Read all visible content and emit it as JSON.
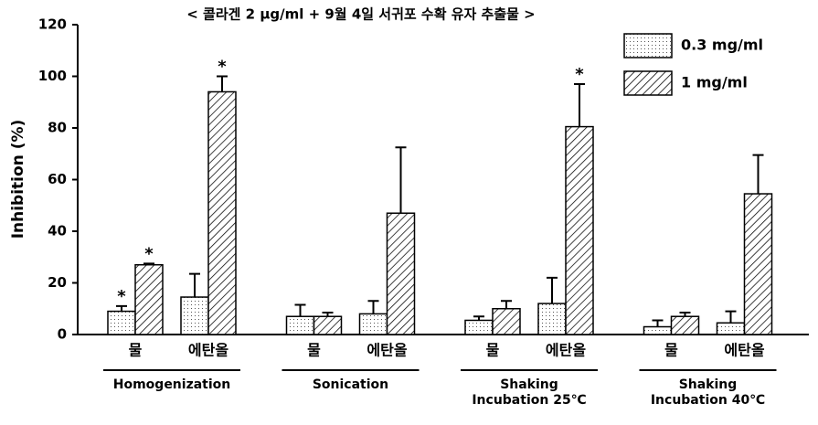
{
  "chart_data": {
    "type": "bar",
    "title": "< 콜라겐 2 μg/ml + 9월 4일 서귀포 수확 유자 추출물 >",
    "y_label": "Inhibition (%)",
    "categories": [
      "물",
      "에탄올",
      "물",
      "에탄올",
      "물",
      "에탄올",
      "물",
      "에탄올"
    ],
    "groups": [
      [
        "Homogenization"
      ],
      [
        "Sonication"
      ],
      [
        "Shaking",
        "Incubation  25℃"
      ],
      [
        "Shaking",
        "Incubation  40℃"
      ]
    ],
    "series": [
      {
        "name": "0.3 mg/ml",
        "pattern": "dots",
        "values": [
          9,
          14.5,
          7,
          8,
          5.5,
          12,
          3,
          4.5
        ],
        "errors": [
          2,
          9,
          4.5,
          5,
          1.5,
          10,
          2.5,
          4.5
        ],
        "significance": [
          "*",
          null,
          null,
          null,
          null,
          null,
          null,
          null
        ]
      },
      {
        "name": "1 mg/ml",
        "pattern": "hatch",
        "values": [
          27,
          94,
          7,
          47,
          10,
          80.5,
          7,
          54.5
        ],
        "errors": [
          0.5,
          6,
          1.5,
          25.5,
          3,
          16.5,
          1.5,
          15
        ],
        "significance": [
          "*",
          "*",
          null,
          null,
          null,
          "*",
          null,
          null
        ]
      }
    ],
    "ylim": [
      0,
      120
    ],
    "yticks": [
      0,
      20,
      40,
      60,
      80,
      100,
      120
    ]
  }
}
